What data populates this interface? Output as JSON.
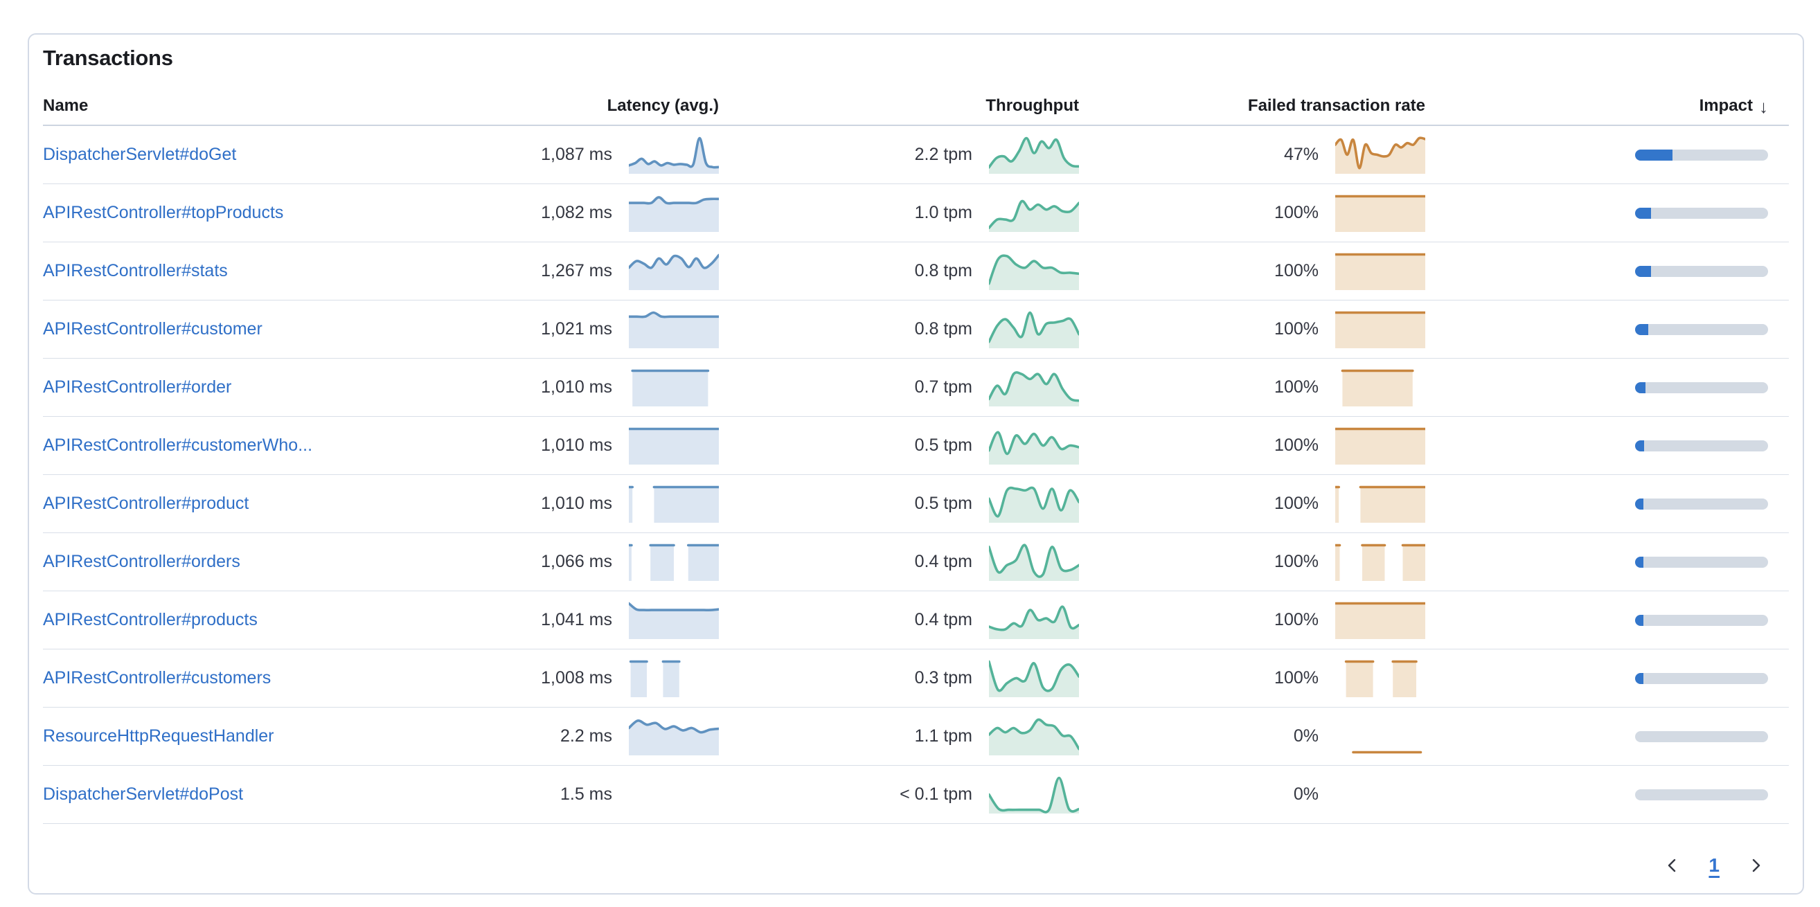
{
  "title": "Transactions",
  "columns": {
    "name": "Name",
    "latency": "Latency (avg.)",
    "throughput": "Throughput",
    "failed": "Failed transaction rate",
    "impact": "Impact"
  },
  "sort": {
    "column": "impact",
    "direction": "descending",
    "icon": "↓"
  },
  "colors": {
    "latency_line": "#6092C0",
    "latency_fill": "#DCE6F2",
    "throughput_line": "#54B399",
    "throughput_fill": "#DCEDE6",
    "failed_line": "#C8863F",
    "failed_fill": "#F3E4D0",
    "impact_fill": "#3376CB",
    "impact_track": "#D3DAE3",
    "link": "#2F6FC7"
  },
  "pagination": {
    "previous_icon": "chevron-left",
    "current_page": "1",
    "next_icon": "chevron-right"
  },
  "rows": [
    {
      "name": "DispatcherServlet#doGet",
      "latency": "1,087 ms",
      "throughput": "2.2 tpm",
      "failed": "47%",
      "impact_pct": 28,
      "latency_spark": [
        {
          "x": [
            0,
            1
          ],
          "y": [
            0.18,
            0.25,
            0.38,
            0.22,
            0.3,
            0.18,
            0.25,
            0.2,
            0.22,
            0.2,
            0.2,
            1.0,
            0.25,
            0.13,
            0.13
          ]
        }
      ],
      "throughput_spark": [
        {
          "x": [
            0,
            1
          ],
          "y": [
            0.12,
            0.4,
            0.45,
            0.3,
            0.6,
            1.0,
            0.55,
            0.9,
            0.7,
            0.95,
            0.4,
            0.18,
            0.15
          ]
        }
      ],
      "failed_spark": [
        {
          "x": [
            0,
            1
          ],
          "y": [
            0.8,
            0.95,
            0.5,
            0.95,
            0.1,
            0.8,
            0.55,
            0.5,
            0.45,
            0.5,
            0.8,
            0.72,
            0.85,
            0.8,
            1.0,
            0.97
          ]
        }
      ]
    },
    {
      "name": "APIRestController#topProducts",
      "latency": "1,082 ms",
      "throughput": "1.0 tpm",
      "failed": "100%",
      "impact_pct": 12,
      "latency_spark": [
        {
          "x": [
            0,
            1
          ],
          "y": [
            0.8,
            0.8,
            0.8,
            0.8,
            0.97,
            0.8,
            0.8,
            0.8,
            0.8,
            0.8,
            0.9,
            0.92,
            0.92
          ]
        }
      ],
      "throughput_spark": [
        {
          "x": [
            0,
            1
          ],
          "y": [
            0.05,
            0.3,
            0.3,
            0.3,
            0.85,
            0.6,
            0.75,
            0.6,
            0.7,
            0.55,
            0.55,
            0.8
          ]
        }
      ],
      "failed_spark": [
        {
          "x": [
            0,
            1
          ],
          "y": [
            1
          ]
        }
      ]
    },
    {
      "name": "APIRestController#stats",
      "latency": "1,267 ms",
      "throughput": "0.8 tpm",
      "failed": "100%",
      "impact_pct": 12,
      "latency_spark": [
        {
          "x": [
            0,
            1
          ],
          "y": [
            0.6,
            0.8,
            0.72,
            0.6,
            0.88,
            0.7,
            0.95,
            0.88,
            0.62,
            0.88,
            0.6,
            0.72,
            0.98
          ]
        }
      ],
      "throughput_spark": [
        {
          "x": [
            0,
            1
          ],
          "y": [
            0.12,
            0.85,
            0.95,
            0.7,
            0.6,
            0.8,
            0.6,
            0.6,
            0.45,
            0.45,
            0.42
          ]
        }
      ],
      "failed_spark": [
        {
          "x": [
            0,
            1
          ],
          "y": [
            1
          ]
        }
      ]
    },
    {
      "name": "APIRestController#customer",
      "latency": "1,021 ms",
      "throughput": "0.8 tpm",
      "failed": "100%",
      "impact_pct": 10,
      "latency_spark": [
        {
          "x": [
            0,
            1
          ],
          "y": [
            0.88,
            0.88,
            0.88,
            1.0,
            0.88,
            0.88,
            0.88,
            0.88,
            0.88,
            0.88,
            0.88,
            0.88
          ]
        }
      ],
      "throughput_spark": [
        {
          "x": [
            0,
            1
          ],
          "y": [
            0.12,
            0.6,
            0.8,
            0.55,
            0.28,
            1.0,
            0.35,
            0.66,
            0.7,
            0.75,
            0.8,
            0.35
          ]
        }
      ],
      "failed_spark": [
        {
          "x": [
            0,
            1
          ],
          "y": [
            1
          ]
        }
      ]
    },
    {
      "name": "APIRestController#order",
      "latency": "1,010 ms",
      "throughput": "0.7 tpm",
      "failed": "100%",
      "impact_pct": 8,
      "latency_spark": [
        {
          "x": [
            0.04,
            0.88
          ],
          "y": [
            1
          ]
        }
      ],
      "throughput_spark": [
        {
          "x": [
            0,
            1
          ],
          "y": [
            0.15,
            0.55,
            0.3,
            0.9,
            0.9,
            0.75,
            0.9,
            0.6,
            0.9,
            0.45,
            0.15,
            0.1
          ]
        }
      ],
      "failed_spark": [
        {
          "x": [
            0.08,
            0.86
          ],
          "y": [
            1
          ]
        }
      ]
    },
    {
      "name": "APIRestController#customerWho...",
      "latency": "1,010 ms",
      "throughput": "0.5 tpm",
      "failed": "100%",
      "impact_pct": 7,
      "latency_spark": [
        {
          "x": [
            0,
            1
          ],
          "y": [
            1
          ]
        }
      ],
      "throughput_spark": [
        {
          "x": [
            0,
            1
          ],
          "y": [
            0.35,
            0.9,
            0.25,
            0.8,
            0.55,
            0.85,
            0.5,
            0.75,
            0.4,
            0.5,
            0.45
          ]
        }
      ],
      "failed_spark": [
        {
          "x": [
            0,
            1
          ],
          "y": [
            1
          ]
        }
      ]
    },
    {
      "name": "APIRestController#product",
      "latency": "1,010 ms",
      "throughput": "0.5 tpm",
      "failed": "100%",
      "impact_pct": 6.5,
      "latency_spark": [
        {
          "x": [
            0,
            0.04
          ],
          "y": [
            1
          ]
        },
        {
          "x": [
            0.28,
            1
          ],
          "y": [
            1
          ]
        }
      ],
      "throughput_spark": [
        {
          "x": [
            0,
            1
          ],
          "y": [
            0.65,
            0.12,
            0.9,
            0.95,
            0.9,
            0.95,
            0.35,
            0.95,
            0.3,
            0.9,
            0.55
          ]
        }
      ],
      "failed_spark": [
        {
          "x": [
            0,
            0.04
          ],
          "y": [
            1
          ]
        },
        {
          "x": [
            0.28,
            1
          ],
          "y": [
            1
          ]
        }
      ]
    },
    {
      "name": "APIRestController#orders",
      "latency": "1,066 ms",
      "throughput": "0.4 tpm",
      "failed": "100%",
      "impact_pct": 6,
      "latency_spark": [
        {
          "x": [
            0,
            0.03
          ],
          "y": [
            1
          ]
        },
        {
          "x": [
            0.24,
            0.5
          ],
          "y": [
            1
          ]
        },
        {
          "x": [
            0.66,
            1
          ],
          "y": [
            1
          ]
        }
      ],
      "throughput_spark": [
        {
          "x": [
            0,
            1
          ],
          "y": [
            0.95,
            0.2,
            0.4,
            0.55,
            1.0,
            0.2,
            0.12,
            0.95,
            0.3,
            0.25,
            0.4
          ]
        }
      ],
      "failed_spark": [
        {
          "x": [
            0,
            0.05
          ],
          "y": [
            1
          ]
        },
        {
          "x": [
            0.3,
            0.55
          ],
          "y": [
            1
          ]
        },
        {
          "x": [
            0.75,
            1
          ],
          "y": [
            1
          ]
        }
      ]
    },
    {
      "name": "APIRestController#products",
      "latency": "1,041 ms",
      "throughput": "0.4 tpm",
      "failed": "100%",
      "impact_pct": 5.5,
      "latency_spark": [
        {
          "x": [
            0,
            1
          ],
          "y": [
            1,
            0.82,
            0.8,
            0.8,
            0.8,
            0.8,
            0.8,
            0.8,
            0.8,
            0.8,
            0.8,
            0.8,
            0.82
          ]
        }
      ],
      "throughput_spark": [
        {
          "x": [
            0,
            1
          ],
          "y": [
            0.3,
            0.22,
            0.22,
            0.4,
            0.32,
            0.8,
            0.5,
            0.55,
            0.45,
            0.9,
            0.28,
            0.35
          ]
        }
      ],
      "failed_spark": [
        {
          "x": [
            0,
            1
          ],
          "y": [
            1
          ]
        }
      ]
    },
    {
      "name": "APIRestController#customers",
      "latency": "1,008 ms",
      "throughput": "0.3 tpm",
      "failed": "100%",
      "impact_pct": 5,
      "latency_spark": [
        {
          "x": [
            0.02,
            0.2
          ],
          "y": [
            1
          ]
        },
        {
          "x": [
            0.38,
            0.56
          ],
          "y": [
            1
          ]
        }
      ],
      "throughput_spark": [
        {
          "x": [
            0,
            1
          ],
          "y": [
            1.0,
            0.15,
            0.35,
            0.5,
            0.42,
            0.95,
            0.22,
            0.18,
            0.75,
            0.9,
            0.55
          ]
        }
      ],
      "failed_spark": [
        {
          "x": [
            0.12,
            0.42
          ],
          "y": [
            1
          ]
        },
        {
          "x": [
            0.64,
            0.9
          ],
          "y": [
            1
          ]
        }
      ]
    },
    {
      "name": "ResourceHttpRequestHandler",
      "latency": "2.2 ms",
      "throughput": "1.1 tpm",
      "failed": "0%",
      "impact_pct": 0,
      "latency_spark": [
        {
          "x": [
            0,
            1
          ],
          "y": [
            0.75,
            0.97,
            0.85,
            0.9,
            0.72,
            0.8,
            0.68,
            0.75,
            0.62,
            0.7,
            0.73
          ]
        }
      ],
      "throughput_spark": [
        {
          "x": [
            0,
            1
          ],
          "y": [
            0.55,
            0.75,
            0.62,
            0.75,
            0.6,
            0.68,
            1.0,
            0.85,
            0.8,
            0.52,
            0.5,
            0.12
          ]
        }
      ],
      "failed_spark": [
        {
          "x": [
            0.2,
            0.95
          ],
          "y": [
            0.02,
            0.02
          ]
        }
      ]
    },
    {
      "name": "DispatcherServlet#doPost",
      "latency": "1.5 ms",
      "throughput": "< 0.1 tpm",
      "failed": "0%",
      "impact_pct": 0,
      "latency_spark": [],
      "throughput_spark": [
        {
          "x": [
            0,
            1
          ],
          "y": [
            0.5,
            0.06,
            0.04,
            0.04,
            0.04,
            0.04,
            0.04,
            1.0,
            0.06,
            0.06
          ]
        }
      ],
      "failed_spark": []
    }
  ]
}
